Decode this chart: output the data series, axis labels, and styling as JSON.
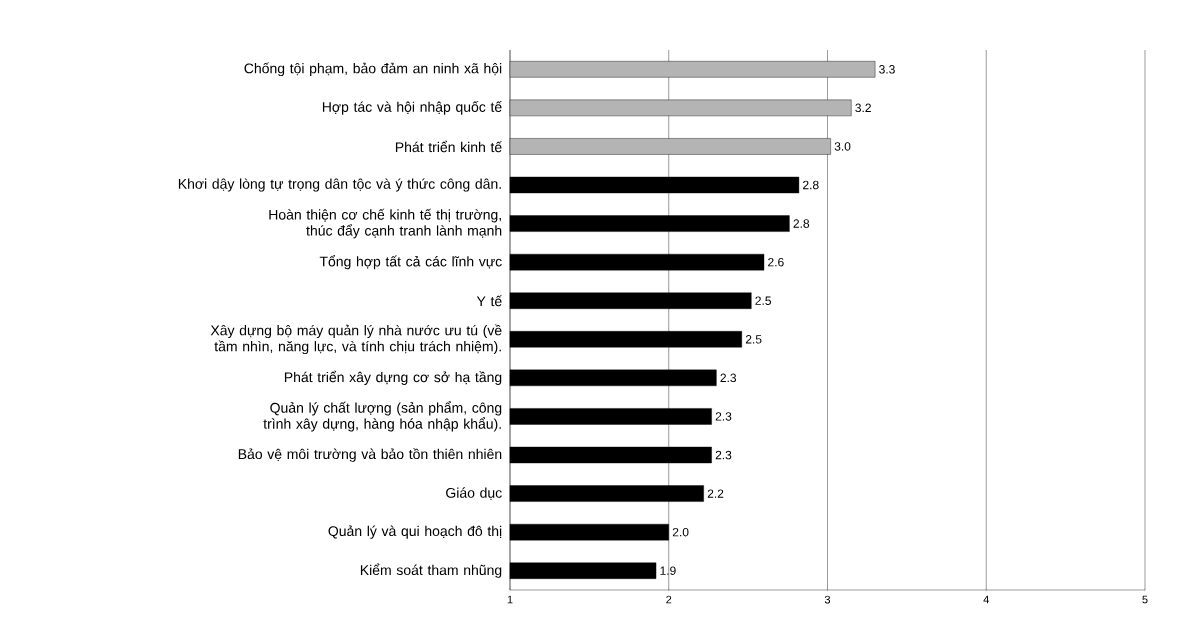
{
  "chart_data": {
    "type": "bar",
    "orientation": "horizontal",
    "categories": [
      "Chống tội phạm, bảo đảm an ninh xã hội",
      "Hợp tác và hội nhập quốc tế",
      "Phát triển kinh tế",
      "Khơi dậy lòng tự trọng dân tộc và ý thức công dân.",
      "Hoàn thiện cơ chế kinh tế thị trường, thúc đẩy cạnh tranh lành mạnh",
      "Tổng hợp tất cả các lĩnh vực",
      "Y tế",
      "Xây dựng bộ máy quản lý nhà nước ưu tú (về tầm nhìn, năng lực, và tính chịu trách nhiệm).",
      "Phát triển xây dựng cơ sở hạ tầng",
      "Quản lý chất lượng (sản phẩm, công trình xây dựng, hàng hóa nhập khẩu).",
      "Bảo vệ môi trường và bảo tồn thiên nhiên",
      "Giáo dục",
      "Quản lý và qui hoạch đô thị",
      "Kiểm soát tham nhũng"
    ],
    "values": [
      3.3,
      3.15,
      3.02,
      2.82,
      2.76,
      2.6,
      2.52,
      2.46,
      2.3,
      2.27,
      2.27,
      2.22,
      2.0,
      1.92
    ],
    "value_labels": [
      "3.3",
      "3.2",
      "3.0",
      "2.8",
      "2.8",
      "2.6",
      "2.5",
      "2.5",
      "2.3",
      "2.3",
      "2.3",
      "2.2",
      "2.0",
      "1.9"
    ],
    "colors": [
      "#b4b4b4",
      "#b4b4b4",
      "#b4b4b4",
      "#000000",
      "#000000",
      "#000000",
      "#000000",
      "#000000",
      "#000000",
      "#000000",
      "#000000",
      "#000000",
      "#000000",
      "#000000"
    ],
    "xlim": [
      1,
      5
    ],
    "xticks": [
      1,
      2,
      3,
      4,
      5
    ],
    "grid": "x"
  }
}
